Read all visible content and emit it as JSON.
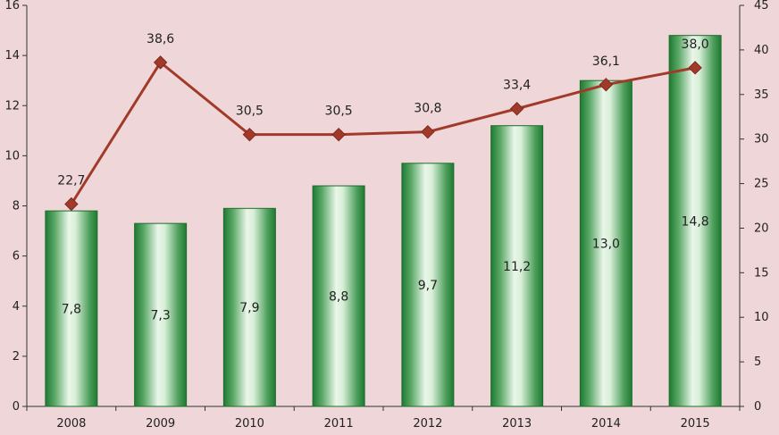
{
  "chart_data": {
    "type": "bar+line",
    "title": "",
    "categories": [
      "2008",
      "2009",
      "2010",
      "2011",
      "2012",
      "2013",
      "2014",
      "2015"
    ],
    "series": [
      {
        "type": "bar",
        "axis": "left",
        "values": [
          7.8,
          7.3,
          7.9,
          8.8,
          9.7,
          11.2,
          13.0,
          14.8
        ],
        "labels": [
          "7,8",
          "7,3",
          "7,9",
          "8,8",
          "9,7",
          "11,2",
          "13,0",
          "14,8"
        ],
        "color": "#2e8b3a"
      },
      {
        "type": "line",
        "axis": "right",
        "values": [
          22.7,
          38.6,
          30.5,
          30.5,
          30.8,
          33.4,
          36.1,
          38.0
        ],
        "labels": [
          "22,7",
          "38,6",
          "30,5",
          "30,5",
          "30,8",
          "33,4",
          "36,1",
          "38,0"
        ],
        "color": "#a23a2a",
        "marker": "diamond"
      }
    ],
    "y_left": {
      "min": 0,
      "max": 16,
      "step": 2,
      "ticks": [
        "0",
        "2",
        "4",
        "6",
        "8",
        "10",
        "12",
        "14",
        "16"
      ]
    },
    "y_right": {
      "min": 0,
      "max": 45,
      "step": 5,
      "ticks": [
        "0",
        "5",
        "10",
        "15",
        "20",
        "25",
        "30",
        "35",
        "40",
        "45"
      ]
    },
    "grid": false,
    "legend": "none",
    "background": "#efd6d8"
  }
}
